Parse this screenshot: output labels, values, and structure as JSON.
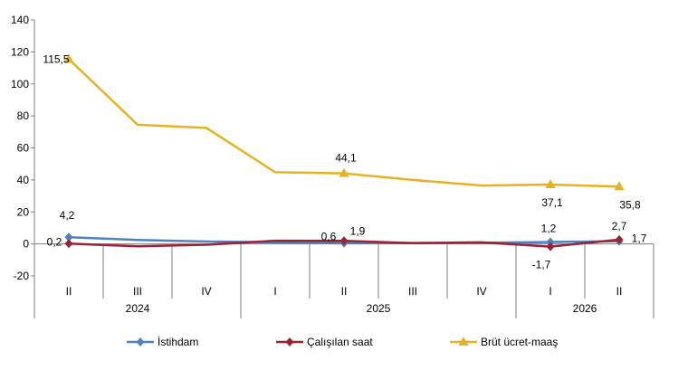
{
  "chart_data": {
    "type": "line",
    "categories": [
      "II",
      "III",
      "IV",
      "I",
      "II",
      "III",
      "IV",
      "I",
      "II"
    ],
    "year_groups": [
      {
        "label": "2024",
        "span": 3
      },
      {
        "label": "2025",
        "span": 4
      },
      {
        "label": "2026",
        "span": 2
      }
    ],
    "ylim": [
      -20,
      140
    ],
    "yticks": [
      -20,
      0,
      20,
      40,
      60,
      80,
      100,
      120,
      140
    ],
    "ytick_labels": [
      "-20",
      "0",
      "20",
      "40",
      "60",
      "80",
      "100",
      "120",
      "140"
    ],
    "grid": false,
    "legend_position": "bottom",
    "series": [
      {
        "name": "İstihdam",
        "color": "#4f81bd",
        "marker": "diamond",
        "values": [
          4.2,
          2.5,
          1.5,
          1.0,
          0.6,
          0.6,
          0.7,
          1.2,
          1.7
        ],
        "labels": [
          "4,2",
          null,
          null,
          null,
          "0,6",
          null,
          null,
          "1,2",
          "1,7"
        ]
      },
      {
        "name": "Çalışılan saat",
        "color": "#9b2335",
        "marker": "diamond",
        "values": [
          0.2,
          -1.5,
          -0.5,
          2.0,
          1.9,
          0.5,
          1.0,
          -1.7,
          2.7
        ],
        "labels": [
          "0,2",
          null,
          null,
          null,
          "1,9",
          null,
          null,
          "-1,7",
          "2,7"
        ]
      },
      {
        "name": "Brüt ücret-maaş",
        "color": "#e6b31e",
        "marker": "triangle",
        "values": [
          115.5,
          74.5,
          72.5,
          44.8,
          44.1,
          40.0,
          36.5,
          37.1,
          35.8
        ],
        "labels": [
          "115,5",
          null,
          null,
          null,
          "44,1",
          null,
          null,
          "37,1",
          "35,8"
        ]
      }
    ]
  }
}
